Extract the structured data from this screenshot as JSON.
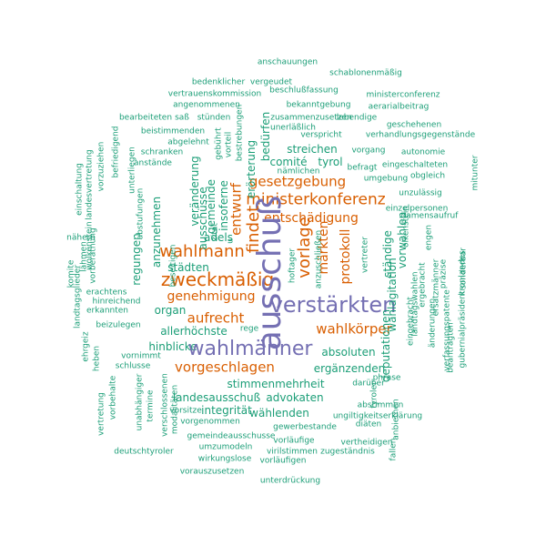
{
  "palette": {
    "teal": "#1b9e77",
    "orange": "#d95f02",
    "purple": "#7570b3"
  },
  "words": [
    {
      "text": "anschauungen",
      "tone": "teal"
    },
    {
      "text": "schablonenmäßig",
      "tone": "teal"
    },
    {
      "text": "bedenklicher",
      "tone": "teal"
    },
    {
      "text": "vergeudet",
      "tone": "teal"
    },
    {
      "text": "vertrauenskommission",
      "tone": "teal"
    },
    {
      "text": "beschlußfassung",
      "tone": "teal"
    },
    {
      "text": "ministerconferenz",
      "tone": "teal"
    },
    {
      "text": "angenommenen",
      "tone": "teal"
    },
    {
      "text": "bekanntgebung",
      "tone": "teal"
    },
    {
      "text": "aerarialbeitrag",
      "tone": "teal"
    },
    {
      "text": "bearbeiteten",
      "tone": "teal"
    },
    {
      "text": "saß",
      "tone": "teal"
    },
    {
      "text": "stünden",
      "tone": "teal"
    },
    {
      "text": "zusammenzusetzen",
      "tone": "teal"
    },
    {
      "text": "lebendige",
      "tone": "teal"
    },
    {
      "text": "geschehenen",
      "tone": "teal"
    },
    {
      "text": "beistimmenden",
      "tone": "teal"
    },
    {
      "text": "unerläßlich",
      "tone": "teal"
    },
    {
      "text": "verspricht",
      "tone": "teal"
    },
    {
      "text": "verhandlungsgegenstände",
      "tone": "teal"
    },
    {
      "text": "abgelehnt",
      "tone": "teal"
    },
    {
      "text": "vorgang",
      "tone": "teal"
    },
    {
      "text": "autonomie",
      "tone": "teal"
    },
    {
      "text": "schranken",
      "tone": "teal"
    },
    {
      "text": "anstände",
      "tone": "teal"
    },
    {
      "text": "streichen",
      "tone": "teal"
    },
    {
      "text": "comité",
      "tone": "teal"
    },
    {
      "text": "tyrol",
      "tone": "teal"
    },
    {
      "text": "befragt",
      "tone": "teal"
    },
    {
      "text": "eingeschalteten",
      "tone": "teal"
    },
    {
      "text": "nämlichen",
      "tone": "teal"
    },
    {
      "text": "umgebung",
      "tone": "teal"
    },
    {
      "text": "obgleich",
      "tone": "teal"
    },
    {
      "text": "unzulässig",
      "tone": "teal"
    },
    {
      "text": "gesetzgebung",
      "tone": "orange"
    },
    {
      "text": "ministerkonferenz",
      "tone": "orange"
    },
    {
      "text": "einzelpersonen",
      "tone": "teal"
    },
    {
      "text": "entschädigung",
      "tone": "orange"
    },
    {
      "text": "namensaufruf",
      "tone": "teal"
    },
    {
      "text": "wahlmann",
      "tone": "orange"
    },
    {
      "text": "adels",
      "tone": "teal"
    },
    {
      "text": "städten",
      "tone": "teal"
    },
    {
      "text": "zweckmäßig",
      "tone": "orange"
    },
    {
      "text": "verstärkten",
      "tone": "purple"
    },
    {
      "text": "genehmigung",
      "tone": "orange"
    },
    {
      "text": "aufrecht",
      "tone": "orange"
    },
    {
      "text": "wahlkörper",
      "tone": "orange"
    },
    {
      "text": "organ",
      "tone": "teal"
    },
    {
      "text": "allerhöchste",
      "tone": "teal"
    },
    {
      "text": "rege",
      "tone": "teal"
    },
    {
      "text": "hinblicke",
      "tone": "teal"
    },
    {
      "text": "wahlmänner",
      "tone": "purple"
    },
    {
      "text": "absoluten",
      "tone": "teal"
    },
    {
      "text": "vorgeschlagen",
      "tone": "orange"
    },
    {
      "text": "ergänzenden",
      "tone": "teal"
    },
    {
      "text": "stimmenmehrheit",
      "tone": "teal"
    },
    {
      "text": "landesausschuß",
      "tone": "teal"
    },
    {
      "text": "advokaten",
      "tone": "teal"
    },
    {
      "text": "integrität",
      "tone": "teal"
    },
    {
      "text": "wählenden",
      "tone": "teal"
    },
    {
      "text": "vorsitze",
      "tone": "teal"
    },
    {
      "text": "darüber",
      "tone": "teal"
    },
    {
      "text": "phrase",
      "tone": "teal"
    },
    {
      "text": "vorgenommen",
      "tone": "teal"
    },
    {
      "text": "abstimmen",
      "tone": "teal"
    },
    {
      "text": "ungiltigkeitserklärung",
      "tone": "teal"
    },
    {
      "text": "gewerbestande",
      "tone": "teal"
    },
    {
      "text": "diäten",
      "tone": "teal"
    },
    {
      "text": "gemeindeausschusse",
      "tone": "teal"
    },
    {
      "text": "vorläufige",
      "tone": "teal"
    },
    {
      "text": "vertheidigen",
      "tone": "teal"
    },
    {
      "text": "umzumodeln",
      "tone": "teal"
    },
    {
      "text": "virilstimmen",
      "tone": "teal"
    },
    {
      "text": "zugeständnis",
      "tone": "teal"
    },
    {
      "text": "deutschtyroler",
      "tone": "teal"
    },
    {
      "text": "wirkungslose",
      "tone": "teal"
    },
    {
      "text": "vorläufigen",
      "tone": "teal"
    },
    {
      "text": "vorauszusetzen",
      "tone": "teal"
    },
    {
      "text": "unterdrückung",
      "tone": "teal"
    },
    {
      "text": "schlusse",
      "tone": "teal"
    },
    {
      "text": "vornimmt",
      "tone": "teal"
    },
    {
      "text": "beizulegen",
      "tone": "teal"
    },
    {
      "text": "erkannten",
      "tone": "teal"
    },
    {
      "text": "hinreichend",
      "tone": "teal"
    },
    {
      "text": "erachtens",
      "tone": "teal"
    },
    {
      "text": "nähern",
      "tone": "teal"
    },
    {
      "text": "ausschuß",
      "tone": "purple",
      "rot": true
    },
    {
      "text": "findet",
      "tone": "orange",
      "rot": true
    },
    {
      "text": "entwurf",
      "tone": "orange",
      "rot": true
    },
    {
      "text": "vorlage",
      "tone": "orange",
      "rot": true
    },
    {
      "text": "märkten",
      "tone": "orange",
      "rot": true
    },
    {
      "text": "protokoll",
      "tone": "orange",
      "rot": true
    },
    {
      "text": "bedürfen",
      "tone": "teal",
      "rot": true
    },
    {
      "text": "erörterung",
      "tone": "teal",
      "rot": true
    },
    {
      "text": "veränderung",
      "tone": "teal",
      "rot": true
    },
    {
      "text": "gemeinde",
      "tone": "teal",
      "rot": true
    },
    {
      "text": "insoferne",
      "tone": "teal",
      "rot": true
    },
    {
      "text": "ausschüsse",
      "tone": "teal",
      "rot": true
    },
    {
      "text": "anzunehmen",
      "tone": "teal",
      "rot": true
    },
    {
      "text": "regungen",
      "tone": "teal",
      "rot": true
    },
    {
      "text": "bestrebungen",
      "tone": "teal",
      "rot": true
    },
    {
      "text": "gebührt",
      "tone": "teal",
      "rot": true
    },
    {
      "text": "vorteil",
      "tone": "teal",
      "rot": true
    },
    {
      "text": "zitat",
      "tone": "teal",
      "rot": true
    },
    {
      "text": "u",
      "tone": "teal",
      "rot": true
    },
    {
      "text": "beseitigen",
      "tone": "teal",
      "rot": true
    },
    {
      "text": "abstufungen",
      "tone": "teal",
      "rot": true
    },
    {
      "text": "unterliegen",
      "tone": "teal",
      "rot": true
    },
    {
      "text": "befriedigend",
      "tone": "teal",
      "rot": true
    },
    {
      "text": "vorzuziehen",
      "tone": "teal",
      "rot": true
    },
    {
      "text": "landesvertretung",
      "tone": "teal",
      "rot": true
    },
    {
      "text": "einschaltung",
      "tone": "teal",
      "rot": true
    },
    {
      "text": "wolkenstein",
      "tone": "teal",
      "rot": true
    },
    {
      "text": "vorberathung",
      "tone": "teal",
      "rot": true
    },
    {
      "text": "lähmen",
      "tone": "teal",
      "rot": true
    },
    {
      "text": "komite",
      "tone": "teal",
      "rot": true
    },
    {
      "text": "landtagsglieder",
      "tone": "teal",
      "rot": true
    },
    {
      "text": "ehrgeiz",
      "tone": "teal",
      "rot": true
    },
    {
      "text": "heben",
      "tone": "teal",
      "rot": true
    },
    {
      "text": "vorbehalte",
      "tone": "teal",
      "rot": true
    },
    {
      "text": "vertretung",
      "tone": "teal",
      "rot": true
    },
    {
      "text": "unabhängiger",
      "tone": "teal",
      "rot": true
    },
    {
      "text": "termine",
      "tone": "teal",
      "rot": true
    },
    {
      "text": "verschlossenen",
      "tone": "teal",
      "rot": true
    },
    {
      "text": "modalitäten",
      "tone": "teal",
      "rot": true
    },
    {
      "text": "hoftager",
      "tone": "teal",
      "rot": true
    },
    {
      "text": "anzuschließen",
      "tone": "teal",
      "rot": true
    },
    {
      "text": "vertreter",
      "tone": "teal",
      "rot": true
    },
    {
      "text": "ständige",
      "tone": "teal",
      "rot": true
    },
    {
      "text": "vorwahlen",
      "tone": "teal",
      "rot": true
    },
    {
      "text": "deputationen",
      "tone": "teal",
      "rot": true
    },
    {
      "text": "wahlagitation",
      "tone": "teal",
      "rot": true
    },
    {
      "text": "olkenstein",
      "tone": "teal",
      "rot": true
    },
    {
      "text": "engen",
      "tone": "teal",
      "rot": true
    },
    {
      "text": "ergebracht",
      "tone": "teal",
      "rot": true
    },
    {
      "text": "landtagswahlen",
      "tone": "teal",
      "rot": true
    },
    {
      "text": "ersatzmänner",
      "tone": "teal",
      "rot": true
    },
    {
      "text": "eingebracht",
      "tone": "teal",
      "rot": true
    },
    {
      "text": "änderungen",
      "tone": "teal",
      "rot": true
    },
    {
      "text": "verfassungspatente",
      "tone": "teal",
      "rot": true
    },
    {
      "text": "beantragten",
      "tone": "teal",
      "rot": true
    },
    {
      "text": "präzise",
      "tone": "teal",
      "rot": true
    },
    {
      "text": "sonderbar",
      "tone": "teal",
      "rot": true
    },
    {
      "text": "kronlandes",
      "tone": "teal",
      "rot": true
    },
    {
      "text": "gubernialpräsident",
      "tone": "teal",
      "rot": true
    },
    {
      "text": "mitunter",
      "tone": "teal",
      "rot": true
    },
    {
      "text": "anbiethen",
      "tone": "teal",
      "rot": true
    },
    {
      "text": "tyroler",
      "tone": "teal",
      "rot": true
    },
    {
      "text": "fallen",
      "tone": "teal",
      "rot": true
    },
    {
      "text": "anzuerkennen",
      "tone": "teal",
      "rot": true
    }
  ]
}
